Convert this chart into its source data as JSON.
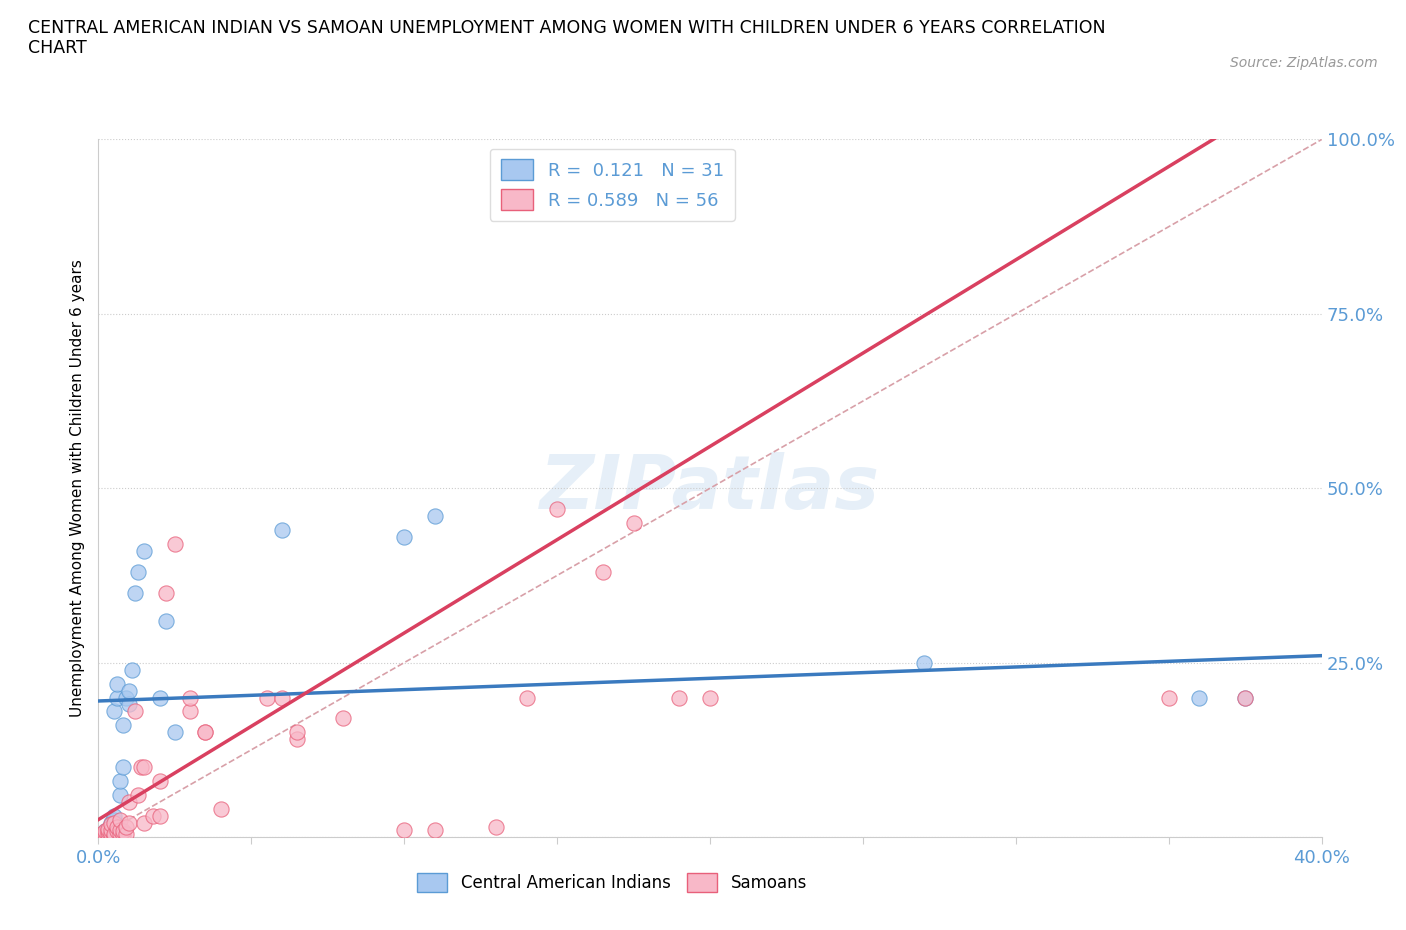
{
  "title": "CENTRAL AMERICAN INDIAN VS SAMOAN UNEMPLOYMENT AMONG WOMEN WITH CHILDREN UNDER 6 YEARS CORRELATION\nCHART",
  "source_text": "Source: ZipAtlas.com",
  "ylabel": "Unemployment Among Women with Children Under 6 years",
  "xlim": [
    0,
    0.4
  ],
  "ylim": [
    0,
    1.0
  ],
  "r_blue": 0.121,
  "n_blue": 31,
  "r_pink": 0.589,
  "n_pink": 56,
  "blue_fill": "#a8c8f0",
  "blue_edge": "#5b9bd5",
  "pink_fill": "#f8b8c8",
  "pink_edge": "#e8607a",
  "blue_line_color": "#3a7abf",
  "pink_line_color": "#d94060",
  "diag_color": "#d8a0a8",
  "axis_color": "#5b9bd5",
  "watermark": "ZIPatlas",
  "blue_scatter_x": [
    0.002,
    0.002,
    0.003,
    0.003,
    0.004,
    0.004,
    0.005,
    0.005,
    0.005,
    0.006,
    0.006,
    0.007,
    0.007,
    0.008,
    0.008,
    0.009,
    0.01,
    0.01,
    0.011,
    0.012,
    0.013,
    0.015,
    0.02,
    0.022,
    0.025,
    0.06,
    0.1,
    0.11,
    0.27,
    0.36,
    0.375
  ],
  "blue_scatter_y": [
    0.005,
    0.008,
    0.01,
    0.012,
    0.015,
    0.02,
    0.025,
    0.03,
    0.18,
    0.2,
    0.22,
    0.06,
    0.08,
    0.1,
    0.16,
    0.2,
    0.19,
    0.21,
    0.24,
    0.35,
    0.38,
    0.41,
    0.2,
    0.31,
    0.15,
    0.44,
    0.43,
    0.46,
    0.25,
    0.2,
    0.2
  ],
  "pink_scatter_x": [
    0.001,
    0.001,
    0.002,
    0.002,
    0.002,
    0.003,
    0.003,
    0.003,
    0.004,
    0.004,
    0.004,
    0.005,
    0.005,
    0.005,
    0.006,
    0.006,
    0.007,
    0.007,
    0.007,
    0.008,
    0.008,
    0.009,
    0.009,
    0.01,
    0.01,
    0.012,
    0.013,
    0.014,
    0.015,
    0.015,
    0.018,
    0.02,
    0.02,
    0.022,
    0.025,
    0.03,
    0.03,
    0.035,
    0.035,
    0.04,
    0.055,
    0.06,
    0.065,
    0.065,
    0.08,
    0.1,
    0.11,
    0.13,
    0.14,
    0.15,
    0.165,
    0.175,
    0.19,
    0.2,
    0.35,
    0.375
  ],
  "pink_scatter_y": [
    0.002,
    0.005,
    0.002,
    0.004,
    0.008,
    0.005,
    0.008,
    0.012,
    0.005,
    0.01,
    0.018,
    0.002,
    0.005,
    0.02,
    0.008,
    0.015,
    0.005,
    0.01,
    0.025,
    0.003,
    0.008,
    0.005,
    0.015,
    0.02,
    0.05,
    0.18,
    0.06,
    0.1,
    0.02,
    0.1,
    0.03,
    0.03,
    0.08,
    0.35,
    0.42,
    0.18,
    0.2,
    0.15,
    0.15,
    0.04,
    0.2,
    0.2,
    0.14,
    0.15,
    0.17,
    0.01,
    0.01,
    0.015,
    0.2,
    0.47,
    0.38,
    0.45,
    0.2,
    0.2,
    0.2,
    0.2
  ],
  "blue_trend_x0": 0.0,
  "blue_trend_y0": 0.195,
  "blue_trend_x1": 0.4,
  "blue_trend_y1": 0.26,
  "pink_trend_x0": 0.0,
  "pink_trend_y0": 0.025,
  "pink_trend_x1": 0.2,
  "pink_trend_y1": 0.56
}
